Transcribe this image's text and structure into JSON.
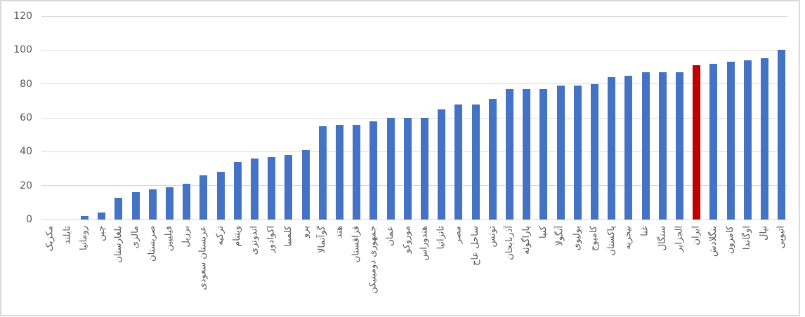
{
  "chart_data": {
    "type": "bar",
    "title": "",
    "xlabel": "",
    "ylabel": "",
    "categories": [
      "مکزیک",
      "تایلند",
      "رومانیا",
      "چین",
      "بلغارستان",
      "مالزی",
      "صربستان",
      "فیلیپین",
      "برزیل",
      "عربستان سعودی",
      "ترکیه",
      "ویتنام",
      "اندونزی",
      "اکوادور",
      "کلمبیا",
      "پرو",
      "گوآتمالا",
      "هند",
      "قزاقستان",
      "جمهوری دومینیکن",
      "عمان",
      "موروکو",
      "هندوراس",
      "تانزانیا",
      "مصر",
      "ساحل عاج",
      "تونس",
      "آذربایجان",
      "پاراگوئه",
      "کنیا",
      "آنگولا",
      "بولیوی",
      "کامبوج",
      "پاکستان",
      "نیجریه",
      "غنا",
      "سنگال",
      "الجزایر",
      "ایران",
      "بنگلادش",
      "کامرون",
      "اوگاندا",
      "نپال",
      "اتیوپی"
    ],
    "values": [
      0,
      0,
      2,
      4,
      13,
      16,
      18,
      19,
      21,
      26,
      28,
      34,
      36,
      37,
      38,
      41,
      55,
      56,
      56,
      58,
      60,
      60,
      60,
      65,
      68,
      68,
      71,
      77,
      77,
      77,
      79,
      79,
      80,
      84,
      85,
      87,
      87,
      87,
      91,
      92,
      93,
      94,
      95,
      100
    ],
    "highlight": {
      "index": 38,
      "category": "ایران",
      "color": "#C00000"
    },
    "bar_color": "#4472C4",
    "y_ticks": [
      0,
      20,
      40,
      60,
      80,
      100,
      120
    ],
    "ylim": [
      0,
      120
    ],
    "grid": true,
    "legend": false,
    "x_label_rotation": -90,
    "text_color": "#595959",
    "gridline_color": "#D9D9D9"
  }
}
